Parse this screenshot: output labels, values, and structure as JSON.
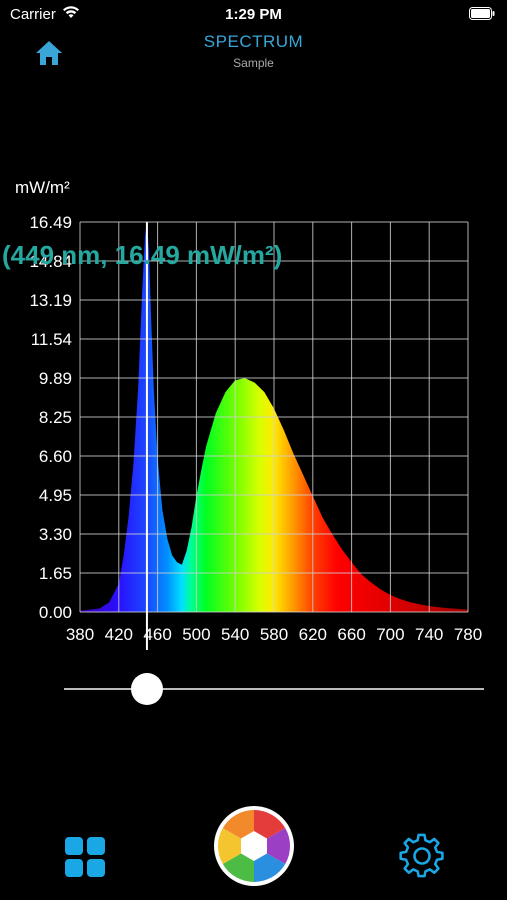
{
  "status_bar": {
    "carrier": "Carrier",
    "time": "1:29 PM"
  },
  "header": {
    "title": "SPECTRUM",
    "subtitle": "Sample"
  },
  "chart_data": {
    "type": "area",
    "title": "",
    "xlabel": "",
    "ylabel": "mW/m²",
    "xlim": [
      380,
      780
    ],
    "ylim": [
      0,
      16.49
    ],
    "x_ticks": [
      "380",
      "420",
      "460",
      "500",
      "540",
      "580",
      "620",
      "660",
      "700",
      "740",
      "780"
    ],
    "y_ticks": [
      "0.00",
      "1.65",
      "3.30",
      "4.95",
      "6.60",
      "8.25",
      "9.89",
      "11.54",
      "13.19",
      "14.84",
      "16.49"
    ],
    "grid": true,
    "series": [
      {
        "x": [
          380,
          400,
          410,
          420,
          425,
          430,
          435,
          440,
          444,
          447,
          449,
          451,
          453,
          456,
          460,
          465,
          470,
          475,
          480,
          485,
          490,
          495,
          500,
          505,
          510,
          520,
          530,
          540,
          550,
          560,
          570,
          580,
          590,
          600,
          610,
          620,
          630,
          640,
          650,
          660,
          670,
          680,
          690,
          700,
          710,
          720,
          730,
          740,
          750,
          760,
          770,
          780
        ],
        "y": [
          0.05,
          0.15,
          0.4,
          1.2,
          2.4,
          4.0,
          6.2,
          9.5,
          13.5,
          15.9,
          16.49,
          15.3,
          12.8,
          9.5,
          6.5,
          4.3,
          3.1,
          2.4,
          2.1,
          2.0,
          2.6,
          3.6,
          4.9,
          6.0,
          7.0,
          8.4,
          9.3,
          9.8,
          9.89,
          9.7,
          9.3,
          8.6,
          7.7,
          6.7,
          5.8,
          4.9,
          4.0,
          3.3,
          2.65,
          2.1,
          1.6,
          1.25,
          0.95,
          0.72,
          0.55,
          0.42,
          0.33,
          0.25,
          0.2,
          0.16,
          0.13,
          0.1
        ]
      }
    ],
    "cursor": {
      "x": 449,
      "y": 16.49
    }
  },
  "readout": {
    "text": "(449 nm, 16.49 mW/m²)"
  },
  "slider": {
    "value_nm": 449
  },
  "icons": {
    "home": "home-icon",
    "menu": "grid-icon",
    "capture": "aperture-icon",
    "settings": "gear-icon"
  },
  "colors": {
    "accent": "#3aa6d8",
    "readout": "#24a8a0",
    "background": "#000000"
  }
}
